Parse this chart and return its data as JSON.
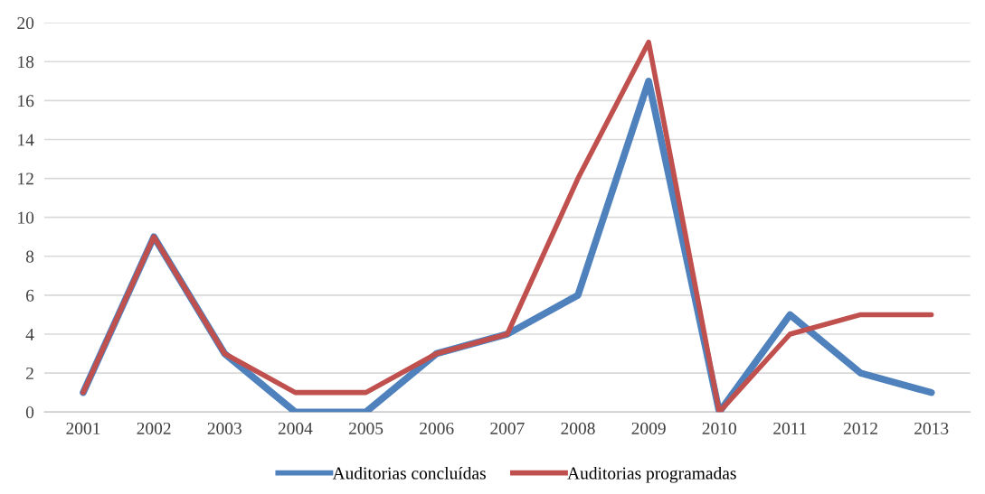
{
  "chart_data": {
    "type": "line",
    "categories": [
      "2001",
      "2002",
      "2003",
      "2004",
      "2005",
      "2006",
      "2007",
      "2008",
      "2009",
      "2010",
      "2011",
      "2012",
      "2013"
    ],
    "series": [
      {
        "name": "Auditorias concluídas",
        "color": "#4f81bd",
        "values": [
          1,
          9,
          3,
          0,
          0,
          3,
          4,
          6,
          17,
          0,
          5,
          2,
          1
        ]
      },
      {
        "name": "Auditorias programadas",
        "color": "#c0504d",
        "values": [
          1,
          9,
          3,
          1,
          1,
          3,
          4,
          12,
          19,
          0,
          4,
          5,
          5
        ]
      }
    ],
    "ylim": [
      0,
      20
    ],
    "yticks": [
      0,
      2,
      4,
      6,
      8,
      10,
      12,
      14,
      16,
      18,
      20
    ],
    "grid": "y",
    "legend": "bottom",
    "marker": "none",
    "line_style": "solid"
  }
}
